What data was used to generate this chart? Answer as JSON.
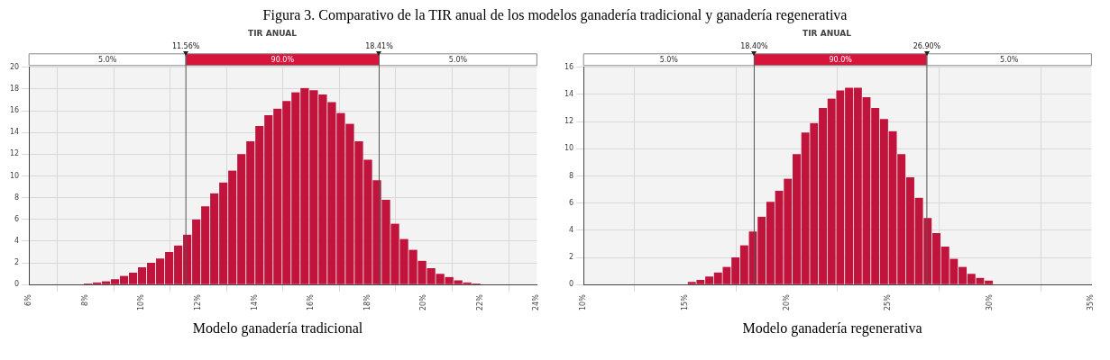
{
  "chart_data": [
    {
      "type": "histogram",
      "title": "TIR ANUAL",
      "annotations": [
        "Figura 3. Comparativo de la TIR anual de los modelos ganadería tradicional y ganadería regenerativa",
        "5.0%",
        "90.0%",
        "5.0%",
        "Modelo ganadería tradicional"
      ],
      "color": "#c0143c",
      "bins": [
        7.92,
        8.24,
        8.56,
        8.88,
        9.2,
        9.52,
        9.84,
        10.16,
        10.48,
        10.8,
        11.12,
        11.44,
        11.76,
        12.08,
        12.4,
        12.72,
        13.04,
        13.36,
        13.68,
        14.0,
        14.32,
        14.64,
        14.96,
        15.28,
        15.6,
        15.92,
        16.24,
        16.56,
        16.88,
        17.2,
        17.52,
        17.84,
        18.16,
        18.48,
        18.8,
        19.12,
        19.44,
        19.76,
        20.08,
        20.4,
        20.72,
        21.04,
        21.36,
        21.68,
        22.0
      ],
      "values": [
        0.1,
        0.2,
        0.3,
        0.5,
        0.8,
        1.1,
        1.6,
        2.0,
        2.4,
        3.0,
        3.6,
        4.6,
        6.0,
        7.2,
        8.4,
        9.4,
        10.5,
        12.0,
        13.2,
        14.6,
        15.6,
        16.2,
        16.9,
        17.7,
        18.1,
        17.9,
        17.5,
        16.8,
        15.8,
        14.8,
        13.2,
        11.5,
        9.6,
        7.8,
        5.6,
        4.2,
        3.2,
        2.2,
        1.5,
        1.0,
        0.7,
        0.4,
        0.2,
        0.1
      ],
      "xlim": [
        6,
        24
      ],
      "xticks": [
        {
          "value": 6,
          "label": "6%"
        },
        {
          "value": 8,
          "label": "8%"
        },
        {
          "value": 10,
          "label": "10%"
        },
        {
          "value": 12,
          "label": "12%"
        },
        {
          "value": 14,
          "label": "14%"
        },
        {
          "value": 16,
          "label": "16%"
        },
        {
          "value": 18,
          "label": "18%"
        },
        {
          "value": 20,
          "label": "20%"
        },
        {
          "value": 22,
          "label": "22%"
        },
        {
          "value": 24,
          "label": "24%"
        }
      ],
      "ylim": [
        0,
        20
      ],
      "yticks": [
        0,
        2,
        4,
        6,
        8,
        10,
        12,
        14,
        16,
        18,
        20
      ],
      "ref_lines": [
        {
          "axis": "x",
          "value": 11.56,
          "label": "11.56%"
        },
        {
          "axis": "x",
          "value": 18.41,
          "label": "18.41%"
        }
      ],
      "grid": true,
      "legend": false
    },
    {
      "type": "histogram",
      "title": "TIR ANUAL",
      "annotations": [
        "5.0%",
        "90.0%",
        "5.0%",
        "Modelo ganadería regenerativa"
      ],
      "color": "#c0143c",
      "bins": [
        15.1,
        15.53,
        15.96,
        16.39,
        16.82,
        17.25,
        17.68,
        18.11,
        18.54,
        18.97,
        19.4,
        19.83,
        20.26,
        20.69,
        21.12,
        21.55,
        21.98,
        22.41,
        22.84,
        23.27,
        23.7,
        24.13,
        24.56,
        24.99,
        25.42,
        25.85,
        26.28,
        26.71,
        27.14,
        27.57,
        28.0,
        28.43,
        28.86,
        29.29,
        29.72,
        30.15
      ],
      "values": [
        0.2,
        0.35,
        0.6,
        0.9,
        1.3,
        2.0,
        2.9,
        3.9,
        5.0,
        6.1,
        6.9,
        7.8,
        9.6,
        11.2,
        11.9,
        13.0,
        13.7,
        14.3,
        14.5,
        14.5,
        13.8,
        13.0,
        12.2,
        11.3,
        9.6,
        7.9,
        6.4,
        4.9,
        3.8,
        2.8,
        1.9,
        1.3,
        0.8,
        0.5,
        0.3
      ],
      "xlim": [
        10,
        35
      ],
      "xticks": [
        {
          "value": 10,
          "label": "10%"
        },
        {
          "value": 15,
          "label": "15%"
        },
        {
          "value": 20,
          "label": "20%"
        },
        {
          "value": 25,
          "label": "25%"
        },
        {
          "value": 30,
          "label": "30%"
        },
        {
          "value": 35,
          "label": "35%"
        }
      ],
      "ylim": [
        0,
        16
      ],
      "yticks": [
        0,
        2,
        4,
        6,
        8,
        10,
        12,
        14,
        16
      ],
      "ref_lines": [
        {
          "axis": "x",
          "value": 18.4,
          "label": "18.40%"
        },
        {
          "axis": "x",
          "value": 26.9,
          "label": "26.90%"
        }
      ],
      "grid": true,
      "legend": false
    }
  ]
}
